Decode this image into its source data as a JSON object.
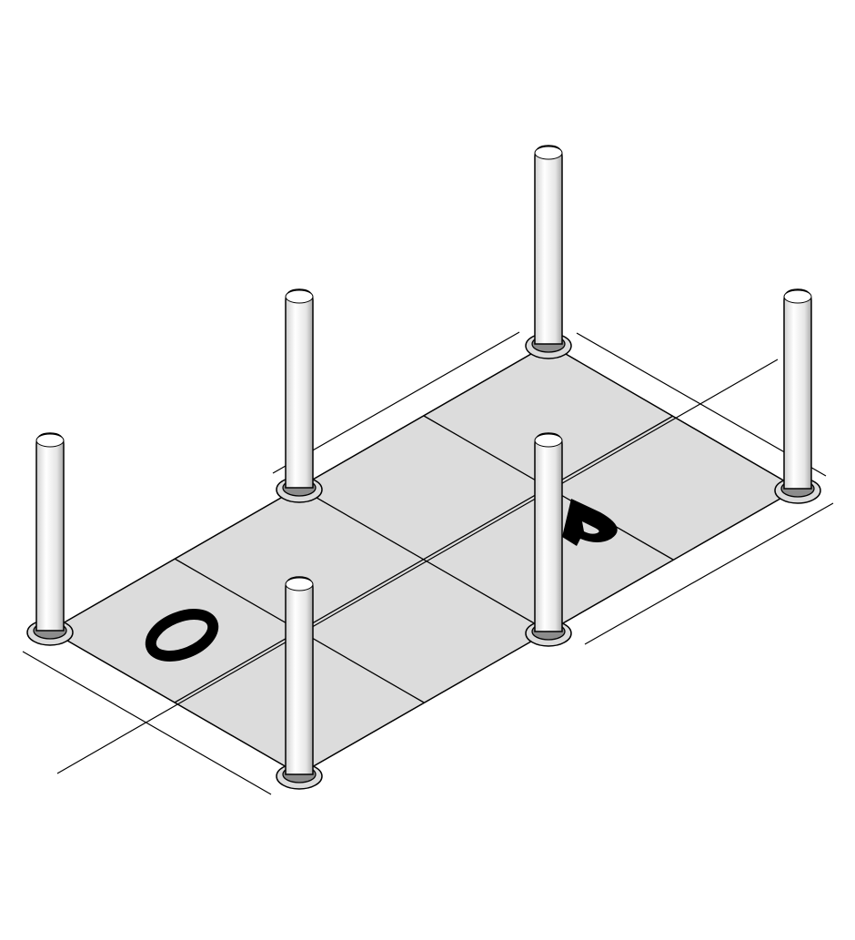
{
  "diagram": {
    "labels": {
      "left": "O",
      "right": "P"
    },
    "colors": {
      "background": "#ffffff",
      "tray_fill": "#dcdcdc",
      "line": "#000000",
      "post_fill": "#f2f2f2",
      "post_shade": "#b8b8b8"
    },
    "grid": {
      "columns": 4,
      "rows": 2
    },
    "posts": 6
  }
}
